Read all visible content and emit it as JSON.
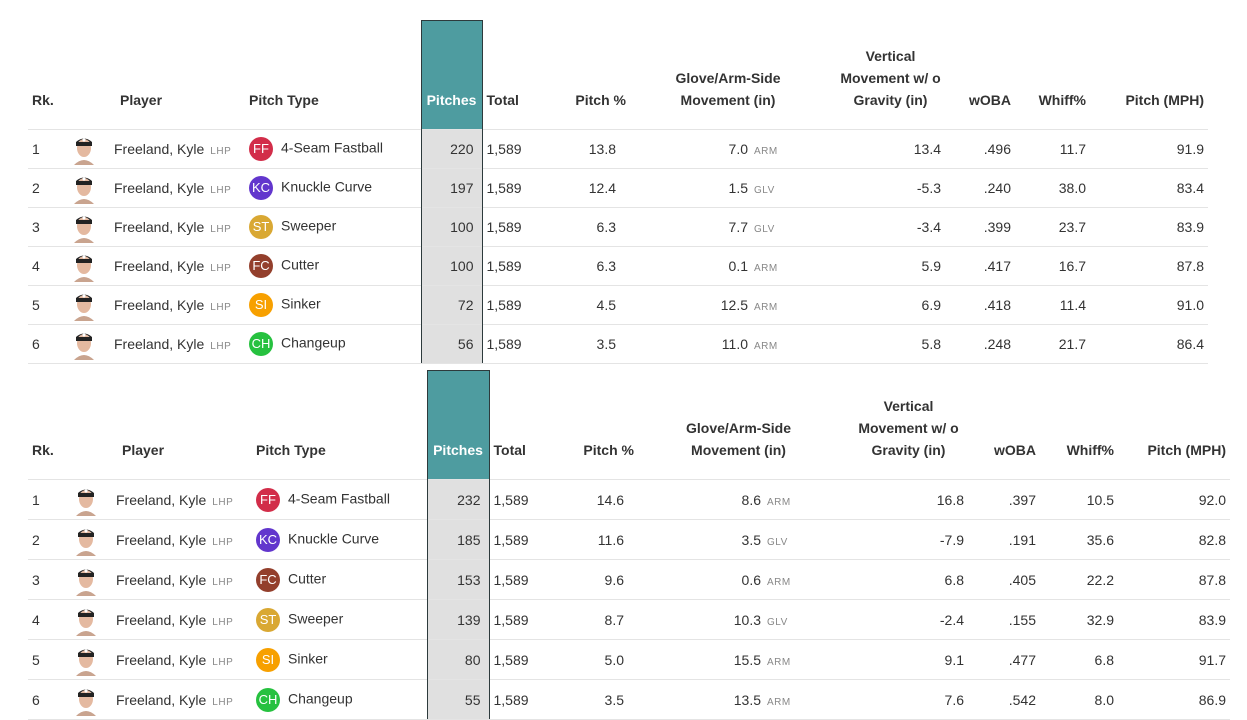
{
  "pitch_colors": {
    "FF": "#d22d49",
    "KC": "#6236cd",
    "ST": "#d9a833",
    "FC": "#933f2c",
    "SI": "#f7a000",
    "CH": "#26c13f"
  },
  "tables": [
    {
      "headers": [
        "Rk.",
        "Player",
        "Pitch Type",
        "Pitches",
        "Total",
        "Pitch %",
        "Glove/Arm-Side Movement (in)",
        "Vertical Movement w/ o Gravity (in)",
        "wOBA",
        "Whiff%",
        "Pitch (MPH)"
      ],
      "rows": [
        [
          "1",
          "Freeland, Kyle",
          "LHP",
          "FF",
          "4-Seam Fastball",
          "220",
          "1,589",
          "13.8",
          "7.0",
          "ARM",
          "13.4",
          ".496",
          "11.7",
          "91.9"
        ],
        [
          "2",
          "Freeland, Kyle",
          "LHP",
          "KC",
          "Knuckle Curve",
          "197",
          "1,589",
          "12.4",
          "1.5",
          "GLV",
          "-5.3",
          ".240",
          "38.0",
          "83.4"
        ],
        [
          "3",
          "Freeland, Kyle",
          "LHP",
          "ST",
          "Sweeper",
          "100",
          "1,589",
          "6.3",
          "7.7",
          "GLV",
          "-3.4",
          ".399",
          "23.7",
          "83.9"
        ],
        [
          "4",
          "Freeland, Kyle",
          "LHP",
          "FC",
          "Cutter",
          "100",
          "1,589",
          "6.3",
          "0.1",
          "ARM",
          "5.9",
          ".417",
          "16.7",
          "87.8"
        ],
        [
          "5",
          "Freeland, Kyle",
          "LHP",
          "SI",
          "Sinker",
          "72",
          "1,589",
          "4.5",
          "12.5",
          "ARM",
          "6.9",
          ".418",
          "11.4",
          "91.0"
        ],
        [
          "6",
          "Freeland, Kyle",
          "LHP",
          "CH",
          "Changeup",
          "56",
          "1,589",
          "3.5",
          "11.0",
          "ARM",
          "5.8",
          ".248",
          "21.7",
          "86.4"
        ]
      ]
    },
    {
      "headers": [
        "Rk.",
        "Player",
        "Pitch Type",
        "Pitches",
        "Total",
        "Pitch %",
        "Glove/Arm-Side Movement (in)",
        "Vertical Movement w/ o Gravity (in)",
        "wOBA",
        "Whiff%",
        "Pitch (MPH)"
      ],
      "rows": [
        [
          "1",
          "Freeland, Kyle",
          "LHP",
          "FF",
          "4-Seam Fastball",
          "232",
          "1,589",
          "14.6",
          "8.6",
          "ARM",
          "16.8",
          ".397",
          "10.5",
          "92.0"
        ],
        [
          "2",
          "Freeland, Kyle",
          "LHP",
          "KC",
          "Knuckle Curve",
          "185",
          "1,589",
          "11.6",
          "3.5",
          "GLV",
          "-7.9",
          ".191",
          "35.6",
          "82.8"
        ],
        [
          "3",
          "Freeland, Kyle",
          "LHP",
          "FC",
          "Cutter",
          "153",
          "1,589",
          "9.6",
          "0.6",
          "ARM",
          "6.8",
          ".405",
          "22.2",
          "87.8"
        ],
        [
          "4",
          "Freeland, Kyle",
          "LHP",
          "ST",
          "Sweeper",
          "139",
          "1,589",
          "8.7",
          "10.3",
          "GLV",
          "-2.4",
          ".155",
          "32.9",
          "83.9"
        ],
        [
          "5",
          "Freeland, Kyle",
          "LHP",
          "SI",
          "Sinker",
          "80",
          "1,589",
          "5.0",
          "15.5",
          "ARM",
          "9.1",
          ".477",
          "6.8",
          "91.7"
        ],
        [
          "6",
          "Freeland, Kyle",
          "LHP",
          "CH",
          "Changeup",
          "55",
          "1,589",
          "3.5",
          "13.5",
          "ARM",
          "7.6",
          ".542",
          "8.0",
          "86.9"
        ]
      ]
    }
  ]
}
